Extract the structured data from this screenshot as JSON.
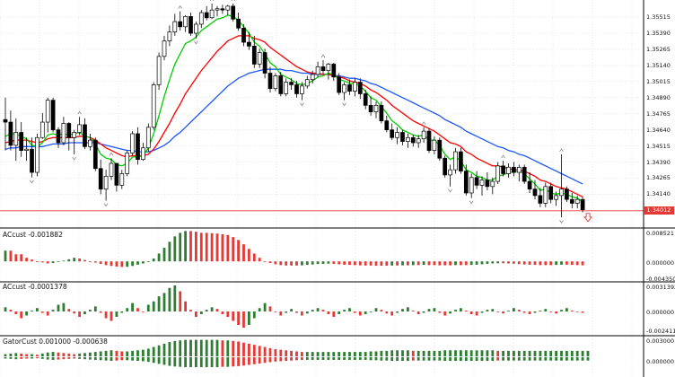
{
  "colors": {
    "bull": "#ffffff",
    "bear": "#000000",
    "fast": "#00cc00",
    "mid": "#ff0000",
    "slow": "#1e56ff",
    "green_hist": "#2e7d32",
    "red_hist": "#e53935",
    "grid": "#d7d7d7",
    "price_line": "#e53935",
    "arrow": "#e53935"
  },
  "icons": {
    "fractal": "fractal-arrow-icon",
    "sell": "sell-arrow-icon"
  },
  "main": {
    "price_ticks": [
      "1.35515",
      "1.35390",
      "1.35265",
      "1.35140",
      "1.35015",
      "1.34890",
      "1.34765",
      "1.34640",
      "1.34515",
      "1.34390",
      "1.34265",
      "1.34140"
    ],
    "current_price": "1.34012"
  },
  "panels": [
    {
      "title": "ACcust -0.001882",
      "ticks": [
        "0.008521",
        "0.000000",
        "-0.004350"
      ]
    },
    {
      "title": "ACcust -0.0001378",
      "ticks": [
        "0.0031392",
        "0.000000",
        "-0.0024114"
      ]
    },
    {
      "title": "GatorCust 0.001000 -0.000638",
      "ticks": [
        "0.003000",
        "0.000000"
      ]
    }
  ],
  "chart_data": {
    "type": "candlestick",
    "y_range": [
      1.3392,
      1.3562
    ],
    "candles": [
      [
        1.3472,
        1.3489,
        1.3448,
        1.347
      ],
      [
        1.347,
        1.3479,
        1.3448,
        1.3452
      ],
      [
        1.3452,
        1.3473,
        1.344,
        1.3462
      ],
      [
        1.3462,
        1.347,
        1.3443,
        1.3448
      ],
      [
        1.3448,
        1.3458,
        1.344,
        1.3449
      ],
      [
        1.3449,
        1.3458,
        1.3427,
        1.3431
      ],
      [
        1.3431,
        1.3461,
        1.3428,
        1.3458
      ],
      [
        1.3458,
        1.3477,
        1.3457,
        1.347
      ],
      [
        1.347,
        1.3489,
        1.3462,
        1.3487
      ],
      [
        1.3487,
        1.3489,
        1.3462,
        1.3464
      ],
      [
        1.3464,
        1.3466,
        1.345,
        1.3454
      ],
      [
        1.3454,
        1.3474,
        1.3452,
        1.3469
      ],
      [
        1.3469,
        1.347,
        1.3448,
        1.3458
      ],
      [
        1.3458,
        1.3464,
        1.3445,
        1.3462
      ],
      [
        1.3462,
        1.3474,
        1.346,
        1.3468
      ],
      [
        1.3468,
        1.3473,
        1.3449,
        1.3451
      ],
      [
        1.3451,
        1.3461,
        1.3448,
        1.3456
      ],
      [
        1.3456,
        1.3458,
        1.3432,
        1.3434
      ],
      [
        1.3434,
        1.3441,
        1.3414,
        1.3418
      ],
      [
        1.3418,
        1.3433,
        1.3409,
        1.3428
      ],
      [
        1.3428,
        1.3442,
        1.3425,
        1.3438
      ],
      [
        1.3438,
        1.3438,
        1.3416,
        1.3421
      ],
      [
        1.3421,
        1.3433,
        1.3418,
        1.343
      ],
      [
        1.343,
        1.3448,
        1.3428,
        1.3446
      ],
      [
        1.3446,
        1.3463,
        1.3444,
        1.3461
      ],
      [
        1.3461,
        1.3466,
        1.3437,
        1.3441
      ],
      [
        1.3441,
        1.3454,
        1.344,
        1.345
      ],
      [
        1.345,
        1.3469,
        1.3447,
        1.3466
      ],
      [
        1.3466,
        1.3501,
        1.3464,
        1.3499
      ],
      [
        1.3499,
        1.3524,
        1.3495,
        1.3521
      ],
      [
        1.3521,
        1.3537,
        1.3518,
        1.3533
      ],
      [
        1.3533,
        1.3545,
        1.3529,
        1.354
      ],
      [
        1.354,
        1.3554,
        1.3537,
        1.3548
      ],
      [
        1.3548,
        1.3556,
        1.3541,
        1.3544
      ],
      [
        1.3544,
        1.3553,
        1.354,
        1.3552
      ],
      [
        1.3552,
        1.3555,
        1.3537,
        1.3539
      ],
      [
        1.3539,
        1.3548,
        1.3535,
        1.3546
      ],
      [
        1.3546,
        1.3557,
        1.3543,
        1.3555
      ],
      [
        1.3555,
        1.356,
        1.3549,
        1.3551
      ],
      [
        1.3551,
        1.3562,
        1.355,
        1.3557
      ],
      [
        1.3557,
        1.356,
        1.3552,
        1.3558
      ],
      [
        1.3558,
        1.3561,
        1.3554,
        1.3557
      ],
      [
        1.3557,
        1.3561,
        1.3553,
        1.356
      ],
      [
        1.356,
        1.3562,
        1.3548,
        1.355
      ],
      [
        1.355,
        1.3555,
        1.3541,
        1.3543
      ],
      [
        1.3543,
        1.3546,
        1.3529,
        1.3532
      ],
      [
        1.3532,
        1.354,
        1.3526,
        1.3529
      ],
      [
        1.3529,
        1.3537,
        1.3512,
        1.3515
      ],
      [
        1.3515,
        1.3527,
        1.3512,
        1.3524
      ],
      [
        1.3524,
        1.3527,
        1.3504,
        1.3508
      ],
      [
        1.3508,
        1.3513,
        1.3493,
        1.3496
      ],
      [
        1.3496,
        1.3508,
        1.3494,
        1.3506
      ],
      [
        1.3506,
        1.3509,
        1.349,
        1.3492
      ],
      [
        1.3492,
        1.3504,
        1.349,
        1.3501
      ],
      [
        1.3501,
        1.3504,
        1.3495,
        1.3499
      ],
      [
        1.3499,
        1.3502,
        1.3489,
        1.3492
      ],
      [
        1.3492,
        1.3501,
        1.3487,
        1.3498
      ],
      [
        1.3498,
        1.3506,
        1.3496,
        1.3503
      ],
      [
        1.3503,
        1.351,
        1.35,
        1.3507
      ],
      [
        1.3507,
        1.3517,
        1.3505,
        1.3513
      ],
      [
        1.3513,
        1.3518,
        1.3507,
        1.351
      ],
      [
        1.351,
        1.3516,
        1.3503,
        1.3515
      ],
      [
        1.3515,
        1.3516,
        1.3502,
        1.3505
      ],
      [
        1.3505,
        1.3508,
        1.3491,
        1.3493
      ],
      [
        1.3493,
        1.3501,
        1.3487,
        1.3499
      ],
      [
        1.3499,
        1.3503,
        1.3491,
        1.3494
      ],
      [
        1.3494,
        1.3504,
        1.349,
        1.3501
      ],
      [
        1.3501,
        1.3504,
        1.3488,
        1.3492
      ],
      [
        1.3492,
        1.3495,
        1.348,
        1.3483
      ],
      [
        1.3483,
        1.349,
        1.3475,
        1.3478
      ],
      [
        1.3478,
        1.3486,
        1.3473,
        1.3483
      ],
      [
        1.3483,
        1.3486,
        1.3469,
        1.3471
      ],
      [
        1.3471,
        1.3475,
        1.3462,
        1.3464
      ],
      [
        1.3464,
        1.3469,
        1.3456,
        1.3458
      ],
      [
        1.3458,
        1.3466,
        1.3453,
        1.3462
      ],
      [
        1.3462,
        1.3464,
        1.3452,
        1.3455
      ],
      [
        1.3455,
        1.3461,
        1.345,
        1.3458
      ],
      [
        1.3458,
        1.346,
        1.3451,
        1.3454
      ],
      [
        1.3454,
        1.346,
        1.345,
        1.3457
      ],
      [
        1.3457,
        1.3466,
        1.3454,
        1.3463
      ],
      [
        1.3463,
        1.3465,
        1.3446,
        1.3448
      ],
      [
        1.3448,
        1.3459,
        1.3445,
        1.3456
      ],
      [
        1.3456,
        1.3458,
        1.344,
        1.3442
      ],
      [
        1.3442,
        1.3444,
        1.3427,
        1.3429
      ],
      [
        1.3429,
        1.3437,
        1.342,
        1.3433
      ],
      [
        1.3433,
        1.345,
        1.343,
        1.3447
      ],
      [
        1.3447,
        1.345,
        1.343,
        1.3432
      ],
      [
        1.3432,
        1.3437,
        1.3413,
        1.3415
      ],
      [
        1.3415,
        1.343,
        1.3411,
        1.3427
      ],
      [
        1.3427,
        1.3432,
        1.3418,
        1.3421
      ],
      [
        1.3421,
        1.3428,
        1.3413,
        1.3425
      ],
      [
        1.3425,
        1.3431,
        1.3417,
        1.342
      ],
      [
        1.342,
        1.3427,
        1.3414,
        1.3424
      ],
      [
        1.3424,
        1.3439,
        1.3422,
        1.3436
      ],
      [
        1.3436,
        1.344,
        1.3428,
        1.343
      ],
      [
        1.343,
        1.3438,
        1.3427,
        1.3435
      ],
      [
        1.3435,
        1.3439,
        1.3428,
        1.3431
      ],
      [
        1.3431,
        1.3437,
        1.3424,
        1.3435
      ],
      [
        1.3435,
        1.3437,
        1.3422,
        1.3424
      ],
      [
        1.3424,
        1.3431,
        1.3415,
        1.3418
      ],
      [
        1.3418,
        1.3425,
        1.341,
        1.3413
      ],
      [
        1.3413,
        1.3419,
        1.3404,
        1.3407
      ],
      [
        1.3407,
        1.3423,
        1.3404,
        1.342
      ],
      [
        1.342,
        1.3423,
        1.3407,
        1.341
      ],
      [
        1.341,
        1.3416,
        1.3405,
        1.3413
      ],
      [
        1.3413,
        1.3445,
        1.3396,
        1.3418
      ],
      [
        1.3418,
        1.342,
        1.3408,
        1.341
      ],
      [
        1.341,
        1.3415,
        1.3403,
        1.3407
      ],
      [
        1.3407,
        1.3413,
        1.3403,
        1.341
      ],
      [
        1.341,
        1.3412,
        1.34,
        1.3402
      ]
    ],
    "fast_ma": [
      1.3459,
      1.3461,
      1.3461,
      1.3459,
      1.3457,
      1.3452,
      1.3451,
      1.3454,
      1.346,
      1.3461,
      1.346,
      1.3461,
      1.346,
      1.3461,
      1.3462,
      1.3459,
      1.3458,
      1.3453,
      1.3445,
      1.3442,
      1.3441,
      1.3437,
      1.3436,
      1.3438,
      1.3443,
      1.3443,
      1.3444,
      1.345,
      1.3461,
      1.3475,
      1.349,
      1.3503,
      1.3515,
      1.3523,
      1.3531,
      1.3533,
      1.3536,
      1.3541,
      1.3544,
      1.3547,
      1.355,
      1.3551,
      1.3553,
      1.3552,
      1.3549,
      1.3544,
      1.3539,
      1.3532,
      1.3529,
      1.3523,
      1.3516,
      1.3513,
      1.3507,
      1.3505,
      1.3503,
      1.35,
      1.3499,
      1.35,
      1.3502,
      1.3505,
      1.3506,
      1.3508,
      1.3507,
      1.3503,
      1.3502,
      1.35,
      1.35,
      1.3498,
      1.3494,
      1.3489,
      1.3487,
      1.3482,
      1.3477,
      1.3471,
      1.3468,
      1.3464,
      1.3462,
      1.346,
      1.3459,
      1.346,
      1.3456,
      1.3456,
      1.3452,
      1.3445,
      1.3441,
      1.3443,
      1.344,
      1.3433,
      1.3431,
      1.3428,
      1.3427,
      1.3425,
      1.3425,
      1.3428,
      1.3429,
      1.3431,
      1.3431,
      1.3432,
      1.343,
      1.3426,
      1.3422,
      1.3417,
      1.3418,
      1.3415,
      1.3414,
      1.3415,
      1.3414,
      1.3412,
      1.3411,
      1.3408
    ],
    "mid_ma": [
      1.3454,
      1.3455,
      1.3456,
      1.3456,
      1.3456,
      1.3455,
      1.3454,
      1.3455,
      1.3457,
      1.3458,
      1.3458,
      1.3458,
      1.3458,
      1.3458,
      1.3459,
      1.3459,
      1.3458,
      1.3456,
      1.3453,
      1.345,
      1.3448,
      1.3446,
      1.3444,
      1.3443,
      1.3444,
      1.3444,
      1.3444,
      1.3445,
      1.3449,
      1.3455,
      1.3462,
      1.3469,
      1.3477,
      1.3484,
      1.3492,
      1.3498,
      1.3504,
      1.351,
      1.3515,
      1.352,
      1.3525,
      1.3529,
      1.3533,
      1.3535,
      1.3537,
      1.3537,
      1.3537,
      1.3535,
      1.3534,
      1.3532,
      1.3528,
      1.3525,
      1.3522,
      1.3519,
      1.3516,
      1.3513,
      1.3511,
      1.3509,
      1.3508,
      1.3508,
      1.3507,
      1.3507,
      1.3506,
      1.3505,
      1.3504,
      1.3502,
      1.3501,
      1.35,
      1.3498,
      1.3495,
      1.3493,
      1.349,
      1.3487,
      1.3483,
      1.348,
      1.3477,
      1.3474,
      1.3471,
      1.3469,
      1.3467,
      1.3465,
      1.3463,
      1.346,
      1.3457,
      1.3454,
      1.3453,
      1.3451,
      1.3447,
      1.3445,
      1.3442,
      1.344,
      1.3438,
      1.3436,
      1.3436,
      1.3435,
      1.3434,
      1.3433,
      1.3433,
      1.3432,
      1.343,
      1.3428,
      1.3425,
      1.3424,
      1.3422,
      1.342,
      1.3419,
      1.3418,
      1.3416,
      1.3414,
      1.3412
    ],
    "slow_ma": [
      1.3449,
      1.345,
      1.345,
      1.3451,
      1.3451,
      1.3451,
      1.3451,
      1.3451,
      1.3452,
      1.3453,
      1.3453,
      1.3453,
      1.3454,
      1.3454,
      1.3454,
      1.3454,
      1.3454,
      1.3454,
      1.3453,
      1.3452,
      1.3451,
      1.345,
      1.3449,
      1.3448,
      1.3448,
      1.3447,
      1.3447,
      1.3447,
      1.3448,
      1.345,
      1.3452,
      1.3455,
      1.3459,
      1.3462,
      1.3466,
      1.347,
      1.3474,
      1.3478,
      1.3482,
      1.3486,
      1.349,
      1.3494,
      1.3498,
      1.3501,
      1.3504,
      1.3506,
      1.3508,
      1.3509,
      1.351,
      1.3511,
      1.3511,
      1.3511,
      1.3511,
      1.351,
      1.351,
      1.3509,
      1.3508,
      1.3508,
      1.3507,
      1.3507,
      1.3507,
      1.3507,
      1.3506,
      1.3506,
      1.3505,
      1.3504,
      1.3504,
      1.3503,
      1.3502,
      1.35,
      1.3499,
      1.3497,
      1.3495,
      1.3493,
      1.3491,
      1.3489,
      1.3487,
      1.3485,
      1.3483,
      1.3481,
      1.3479,
      1.3477,
      1.3475,
      1.3472,
      1.347,
      1.3468,
      1.3466,
      1.3463,
      1.3461,
      1.3459,
      1.3457,
      1.3455,
      1.3453,
      1.3451,
      1.345,
      1.3448,
      1.3447,
      1.3445,
      1.3444,
      1.3442,
      1.344,
      1.3438,
      1.3436,
      1.3434,
      1.3432,
      1.343,
      1.3428,
      1.3426,
      1.3424,
      1.3422
    ],
    "ac1": [
      0.003,
      0.003,
      0.002,
      0.002,
      0.001,
      0.0005,
      0.0,
      -0.0005,
      -0.001,
      -0.0008,
      -0.0003,
      0.0002,
      0.0006,
      0.001,
      0.0008,
      0.0004,
      0.0,
      -0.0006,
      -0.0012,
      -0.0018,
      -0.0022,
      -0.0025,
      -0.0027,
      -0.0026,
      -0.0022,
      -0.0016,
      -0.001,
      -0.0002,
      0.0008,
      0.0022,
      0.0038,
      0.0055,
      0.007,
      0.008,
      0.0085,
      0.0085,
      0.0083,
      0.008,
      0.008,
      0.0079,
      0.0078,
      0.0076,
      0.0074,
      0.0068,
      0.006,
      0.0048,
      0.0035,
      0.0022,
      0.001,
      0.0,
      -0.0008,
      -0.0014,
      -0.0018,
      -0.002,
      -0.002,
      -0.002,
      -0.0019,
      -0.0017,
      -0.0015,
      -0.0013,
      -0.0012,
      -0.0011,
      -0.0012,
      -0.0014,
      -0.0016,
      -0.0017,
      -0.0018,
      -0.0019,
      -0.002,
      -0.002,
      -0.0021,
      -0.0021,
      -0.0021,
      -0.002,
      -0.002,
      -0.0019,
      -0.0019,
      -0.0018,
      -0.0018,
      -0.0017,
      -0.0018,
      -0.0018,
      -0.0019,
      -0.0019,
      -0.0019,
      -0.0018,
      -0.0018,
      -0.0018,
      -0.0017,
      -0.0016,
      -0.0014,
      -0.0012,
      -0.001,
      -0.0009,
      -0.0009,
      -0.001,
      -0.0011,
      -0.0013,
      -0.0015,
      -0.0016,
      -0.0017,
      -0.0018,
      -0.0018,
      -0.0018,
      -0.0017,
      -0.0016,
      -0.0016,
      -0.0017,
      -0.0018,
      -0.0019
    ],
    "ac2": [
      0.0005,
      0.0002,
      -0.0004,
      -0.001,
      -0.0006,
      0.0001,
      0.0004,
      -0.0002,
      -0.0006,
      0.0002,
      0.0008,
      0.001,
      0.0003,
      -0.0003,
      -0.0008,
      -0.0004,
      0.0002,
      0.0006,
      -0.0002,
      -0.001,
      -0.0014,
      -0.0008,
      -0.0002,
      0.0004,
      0.001,
      0.0004,
      0.0,
      0.0008,
      0.0012,
      0.0018,
      0.0022,
      0.0028,
      0.0031,
      0.0024,
      0.0012,
      0.0002,
      -0.0008,
      -0.0004,
      0.0002,
      0.0005,
      0.0003,
      -0.0004,
      -0.0008,
      -0.0014,
      -0.002,
      -0.0024,
      -0.002,
      -0.001,
      0.0004,
      0.001,
      0.0006,
      0.0,
      -0.0006,
      -0.0002,
      0.0003,
      -0.0002,
      -0.0006,
      -0.0003,
      0.0002,
      0.0004,
      0.0002,
      -0.0004,
      -0.0008,
      -0.0004,
      0.0002,
      0.0004,
      -0.0002,
      -0.0006,
      -0.0004,
      0.0,
      0.0004,
      0.0002,
      -0.0003,
      -0.0006,
      -0.0002,
      0.0003,
      0.0005,
      0.0001,
      -0.0004,
      -0.0002,
      0.0003,
      0.0004,
      -0.0002,
      -0.0006,
      -0.0003,
      0.0002,
      0.0004,
      0.0001,
      -0.0004,
      -0.0006,
      -0.0002,
      0.0002,
      0.0003,
      0.0,
      -0.0003,
      0.0001,
      0.0004,
      0.0002,
      -0.0002,
      -0.0004,
      -0.0002,
      0.0001,
      0.0003,
      -0.0001,
      -0.0003,
      0.0002,
      0.0004,
      0.0001,
      -0.0001,
      -0.0002
    ],
    "gator": [
      0.0004,
      0.0005,
      0.0006,
      0.0005,
      0.0004,
      0.0004,
      0.0003,
      0.0005,
      0.0007,
      0.0008,
      0.0007,
      0.0006,
      0.0005,
      0.0004,
      0.0005,
      0.0006,
      0.0007,
      0.0008,
      0.0009,
      0.001,
      0.0011,
      0.001,
      0.0009,
      0.0009,
      0.001,
      0.0011,
      0.0012,
      0.0014,
      0.0017,
      0.002,
      0.0023,
      0.0026,
      0.0028,
      0.0029,
      0.003,
      0.003,
      0.003,
      0.003,
      0.003,
      0.003,
      0.003,
      0.0029,
      0.0029,
      0.0028,
      0.0027,
      0.0025,
      0.0023,
      0.0021,
      0.0019,
      0.0017,
      0.0015,
      0.0013,
      0.0012,
      0.0011,
      0.001,
      0.0009,
      0.0008,
      0.0008,
      0.0008,
      0.0008,
      0.0008,
      0.0008,
      0.0008,
      0.0008,
      0.0008,
      0.0008,
      0.0008,
      0.0008,
      0.0008,
      0.0009,
      0.0009,
      0.001,
      0.001,
      0.0011,
      0.0011,
      0.0011,
      0.0011,
      0.001,
      0.001,
      0.001,
      0.001,
      0.001,
      0.001,
      0.0011,
      0.0011,
      0.0011,
      0.0011,
      0.0011,
      0.0011,
      0.0011,
      0.0011,
      0.0011,
      0.0011,
      0.001,
      0.001,
      0.001,
      0.001,
      0.001,
      0.001,
      0.001,
      0.001,
      0.001,
      0.001,
      0.001,
      0.001,
      0.001,
      0.001,
      0.001,
      0.001,
      0.001,
      0.001
    ]
  }
}
